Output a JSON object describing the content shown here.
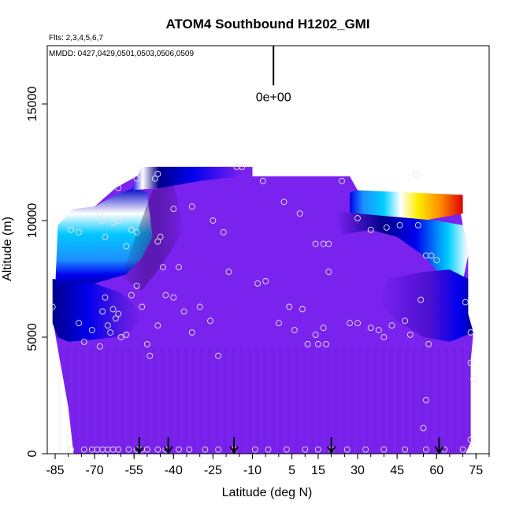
{
  "chart_data": {
    "type": "heatmap",
    "title": "ATOM4 Southbound H1202_GMI",
    "flights_note": "Flts: 2,3,4,5,6,7",
    "dates_note": "MMDD: 0427,0429,0501,0503,0506,0509",
    "xlabel": "Latitude (deg N)",
    "ylabel": "Altitude (m)",
    "xlim": [
      -88,
      80
    ],
    "ylim": [
      0,
      17500
    ],
    "x_ticks": [
      -85,
      -70,
      -55,
      -40,
      -25,
      -10,
      5,
      15,
      30,
      45,
      60,
      75
    ],
    "x_tick_labels": [
      "-85",
      "-70",
      "-55",
      "-40",
      "-25",
      "-10",
      "5",
      "15",
      "30",
      "45",
      "60",
      "75"
    ],
    "y_ticks": [
      0,
      5000,
      10000,
      15000
    ],
    "y_tick_labels": [
      "0",
      "5000",
      "10000",
      "15000"
    ],
    "scale_label": "0e+00",
    "scale_bar": {
      "x": -2,
      "y_bottom": 15800,
      "y_top": 17500
    },
    "colors": {
      "background_field": "#7a22ee",
      "low_dark": "#00008a",
      "mid_blue": "#0000ee",
      "sky": "#1e90ff",
      "cyan": "#00cfff",
      "white": "#ffffff",
      "yellow": "#ffee00",
      "orange": "#ff8c00",
      "red": "#dd0000"
    },
    "dive_markers_lat": [
      -53,
      -42,
      -17,
      20,
      61
    ],
    "surface_points_lat": [
      -79,
      -74,
      -71,
      -69,
      -67,
      -65,
      -63,
      -61,
      -57,
      -54,
      -52,
      -50,
      -46,
      -43,
      -38,
      -34,
      -28,
      -23,
      -17,
      -9,
      -4,
      3,
      10,
      15,
      20,
      26,
      33,
      40,
      48,
      56,
      63,
      70
    ],
    "profile_points": [
      {
        "lat": -86,
        "alt": 6300
      },
      {
        "lat": -76,
        "alt": 5600
      },
      {
        "lat": -74,
        "alt": 4800
      },
      {
        "lat": -71,
        "alt": 5300
      },
      {
        "lat": -68,
        "alt": 4600
      },
      {
        "lat": -67,
        "alt": 6100
      },
      {
        "lat": -66,
        "alt": 6700
      },
      {
        "lat": -65,
        "alt": 5500
      },
      {
        "lat": -64,
        "alt": 5200
      },
      {
        "lat": -63,
        "alt": 6200
      },
      {
        "lat": -62,
        "alt": 5800
      },
      {
        "lat": -61,
        "alt": 6000
      },
      {
        "lat": -60,
        "alt": 5000
      },
      {
        "lat": -58,
        "alt": 5100
      },
      {
        "lat": -56,
        "alt": 6800
      },
      {
        "lat": -54,
        "alt": 7200
      },
      {
        "lat": -52,
        "alt": 6300
      },
      {
        "lat": -50,
        "alt": 4700
      },
      {
        "lat": -49,
        "alt": 4200
      },
      {
        "lat": -46,
        "alt": 5500
      },
      {
        "lat": -43,
        "alt": 6800
      },
      {
        "lat": -40,
        "alt": 6700
      },
      {
        "lat": -36,
        "alt": 6100
      },
      {
        "lat": -33,
        "alt": 5200
      },
      {
        "lat": -30,
        "alt": 6300
      },
      {
        "lat": -26,
        "alt": 5700
      },
      {
        "lat": -23,
        "alt": 4200
      },
      {
        "lat": -19,
        "alt": 7800
      },
      {
        "lat": -8,
        "alt": 7300
      },
      {
        "lat": -5,
        "alt": 7400
      },
      {
        "lat": 0,
        "alt": 5600
      },
      {
        "lat": 4,
        "alt": 6300
      },
      {
        "lat": 6,
        "alt": 5300
      },
      {
        "lat": 9,
        "alt": 6200
      },
      {
        "lat": 11,
        "alt": 4700
      },
      {
        "lat": 14,
        "alt": 5100
      },
      {
        "lat": 15,
        "alt": 4700
      },
      {
        "lat": 17,
        "alt": 5400
      },
      {
        "lat": 18,
        "alt": 4700
      },
      {
        "lat": 19,
        "alt": 7800
      },
      {
        "lat": 27,
        "alt": 5600
      },
      {
        "lat": 30,
        "alt": 5600
      },
      {
        "lat": 35,
        "alt": 5400
      },
      {
        "lat": 38,
        "alt": 5300
      },
      {
        "lat": 40,
        "alt": 5000
      },
      {
        "lat": 43,
        "alt": 5500
      },
      {
        "lat": 48,
        "alt": 5700
      },
      {
        "lat": 50,
        "alt": 5100
      },
      {
        "lat": 54,
        "alt": 6600
      },
      {
        "lat": 57,
        "alt": 4700
      },
      {
        "lat": 71,
        "alt": 6500
      },
      {
        "lat": 73,
        "alt": 5200
      },
      {
        "lat": 73,
        "alt": 3900
      },
      {
        "lat": 74,
        "alt": 3200
      },
      {
        "lat": 56,
        "alt": 2300
      },
      {
        "lat": 55,
        "alt": 1100
      },
      {
        "lat": 73,
        "alt": 600
      },
      {
        "lat": -76,
        "alt": 9500
      },
      {
        "lat": -79,
        "alt": 9600
      },
      {
        "lat": -68,
        "alt": 10300
      },
      {
        "lat": -67,
        "alt": 10000
      },
      {
        "lat": -66,
        "alt": 9300
      },
      {
        "lat": -63,
        "alt": 9900
      },
      {
        "lat": -61,
        "alt": 10000
      },
      {
        "lat": -56,
        "alt": 9600
      },
      {
        "lat": -54,
        "alt": 9500
      },
      {
        "lat": -58,
        "alt": 8900
      },
      {
        "lat": -46,
        "alt": 9100
      },
      {
        "lat": -45,
        "alt": 9300
      },
      {
        "lat": -40,
        "alt": 10500
      },
      {
        "lat": -33,
        "alt": 10600
      },
      {
        "lat": -25,
        "alt": 10000
      },
      {
        "lat": -21,
        "alt": 9500
      },
      {
        "lat": -54,
        "alt": 11800
      },
      {
        "lat": -47,
        "alt": 11800
      },
      {
        "lat": -46,
        "alt": 12000
      },
      {
        "lat": -61,
        "alt": 11400
      },
      {
        "lat": -44,
        "alt": 8000
      },
      {
        "lat": -38,
        "alt": 8000
      },
      {
        "lat": -16,
        "alt": 12300
      },
      {
        "lat": -14,
        "alt": 12300
      },
      {
        "lat": -6,
        "alt": 11700
      },
      {
        "lat": 2,
        "alt": 10800
      },
      {
        "lat": 8,
        "alt": 10300
      },
      {
        "lat": 14,
        "alt": 9000
      },
      {
        "lat": 17,
        "alt": 9000
      },
      {
        "lat": 19,
        "alt": 9000
      },
      {
        "lat": 24,
        "alt": 11700
      },
      {
        "lat": 30,
        "alt": 10100
      },
      {
        "lat": 35,
        "alt": 9600
      },
      {
        "lat": 41,
        "alt": 9700
      },
      {
        "lat": 46,
        "alt": 9800
      },
      {
        "lat": 53,
        "alt": 9800
      },
      {
        "lat": 56,
        "alt": 8500
      },
      {
        "lat": 58,
        "alt": 8500
      },
      {
        "lat": 60,
        "alt": 8300
      },
      {
        "lat": 52,
        "alt": 12000
      }
    ]
  }
}
